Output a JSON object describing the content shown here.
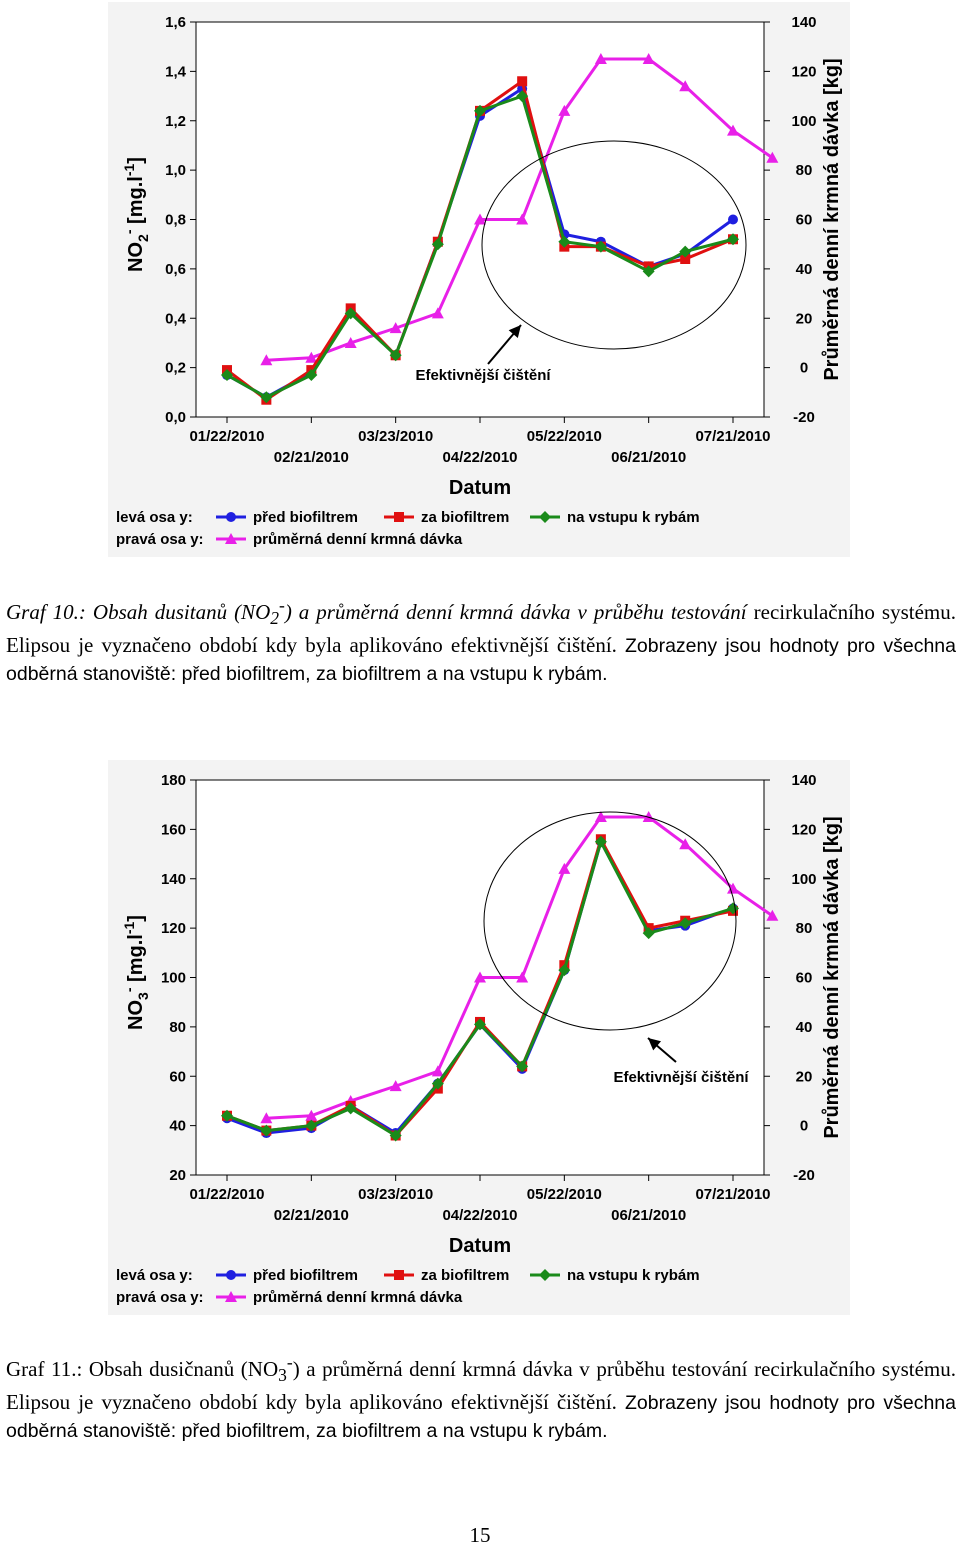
{
  "chart_data": [
    {
      "type": "line",
      "title": "",
      "xlabel": "Datum",
      "ylabel": "NO2- [mg.l-1]",
      "ylabel_parts": [
        "NO",
        "2",
        "-",
        " [mg.l",
        "-1",
        "]"
      ],
      "y2label": "Průměrná denní krmná dávka [kg]",
      "ylim": [
        0,
        1.6
      ],
      "y2lim": [
        -20,
        140
      ],
      "yticks": [
        "0,0",
        "0,2",
        "0,4",
        "0,6",
        "0,8",
        "1,0",
        "1,2",
        "1,4",
        "1,6"
      ],
      "y2ticks": [
        "-20",
        "0",
        "20",
        "40",
        "60",
        "80",
        "100",
        "120",
        "140"
      ],
      "xlim": [
        "2010-01-22",
        "2010-07-21"
      ],
      "xticks_top": [
        "01/22/2010",
        "03/23/2010",
        "05/22/2010",
        "07/21/2010"
      ],
      "xticks_bottom": [
        "02/21/2010",
        "04/22/2010",
        "06/21/2010"
      ],
      "grid": false,
      "legend_left_label": "levá osa y:",
      "legend_right_label": "pravá osa y:",
      "annotation": "Efektivnější čištění",
      "series": [
        {
          "name": "před biofiltrem",
          "axis": "left",
          "color": "#1f1fe0",
          "marker": "circle",
          "x": [
            "2010-01-22",
            "2010-02-05",
            "2010-02-21",
            "2010-03-07",
            "2010-03-23",
            "2010-04-07",
            "2010-04-22",
            "2010-05-07",
            "2010-05-22",
            "2010-06-04",
            "2010-06-21",
            "2010-07-04",
            "2010-07-21"
          ],
          "values": [
            0.17,
            0.08,
            0.18,
            0.43,
            0.25,
            0.71,
            1.22,
            1.33,
            0.74,
            0.71,
            0.61,
            0.66,
            0.8
          ]
        },
        {
          "name": "za biofiltrem",
          "axis": "left",
          "color": "#e01010",
          "marker": "square",
          "x": [
            "2010-01-22",
            "2010-02-05",
            "2010-02-21",
            "2010-03-07",
            "2010-03-23",
            "2010-04-07",
            "2010-04-22",
            "2010-05-07",
            "2010-05-22",
            "2010-06-04",
            "2010-06-21",
            "2010-07-04",
            "2010-07-21"
          ],
          "values": [
            0.19,
            0.07,
            0.19,
            0.44,
            0.25,
            0.71,
            1.24,
            1.36,
            0.69,
            0.69,
            0.61,
            0.64,
            0.72
          ]
        },
        {
          "name": "na vstupu k rybám",
          "axis": "left",
          "color": "#1a8a1a",
          "marker": "diamond",
          "x": [
            "2010-01-22",
            "2010-02-05",
            "2010-02-21",
            "2010-03-07",
            "2010-03-23",
            "2010-04-07",
            "2010-04-22",
            "2010-05-07",
            "2010-05-22",
            "2010-06-04",
            "2010-06-21",
            "2010-07-04",
            "2010-07-21"
          ],
          "values": [
            0.17,
            0.08,
            0.17,
            0.42,
            0.25,
            0.7,
            1.24,
            1.3,
            0.71,
            0.69,
            0.59,
            0.67,
            0.72
          ]
        },
        {
          "name": "průměrná denní krmná dávka",
          "axis": "right",
          "color": "#e820e8",
          "marker": "triangle",
          "x": [
            "2010-02-05",
            "2010-02-21",
            "2010-03-07",
            "2010-03-23",
            "2010-04-07",
            "2010-04-22",
            "2010-05-07",
            "2010-05-22",
            "2010-06-04",
            "2010-06-21",
            "2010-07-04",
            "2010-07-21",
            "2010-08-04"
          ],
          "values": [
            3,
            4,
            10,
            16,
            22,
            60,
            60,
            104,
            125,
            125,
            114,
            96,
            85
          ]
        }
      ]
    },
    {
      "type": "line",
      "title": "",
      "xlabel": "Datum",
      "ylabel": "NO3- [mg.l-1]",
      "ylabel_parts": [
        "NO",
        "3",
        "-",
        " [mg.l",
        "-1",
        "]"
      ],
      "y2label": "Průměrná denní krmná dávka [kg]",
      "ylim": [
        20,
        180
      ],
      "y2lim": [
        -20,
        140
      ],
      "yticks": [
        "20",
        "40",
        "60",
        "80",
        "100",
        "120",
        "140",
        "160",
        "180"
      ],
      "y2ticks": [
        "-20",
        "0",
        "20",
        "40",
        "60",
        "80",
        "100",
        "120",
        "140"
      ],
      "xlim": [
        "2010-01-22",
        "2010-07-21"
      ],
      "xticks_top": [
        "01/22/2010",
        "03/23/2010",
        "05/22/2010",
        "07/21/2010"
      ],
      "xticks_bottom": [
        "02/21/2010",
        "04/22/2010",
        "06/21/2010"
      ],
      "grid": false,
      "legend_left_label": "levá osa y:",
      "legend_right_label": "pravá osa y:",
      "annotation": "Efektivnější čištění",
      "series": [
        {
          "name": "před biofiltrem",
          "axis": "left",
          "color": "#1f1fe0",
          "marker": "circle",
          "x": [
            "2010-01-22",
            "2010-02-05",
            "2010-02-21",
            "2010-03-07",
            "2010-03-23",
            "2010-04-07",
            "2010-04-22",
            "2010-05-07",
            "2010-05-22",
            "2010-06-04",
            "2010-06-21",
            "2010-07-04",
            "2010-07-21"
          ],
          "values": [
            43,
            37,
            39,
            48,
            37,
            57,
            81,
            63,
            103,
            155,
            119,
            121,
            128
          ]
        },
        {
          "name": "za biofiltrem",
          "axis": "left",
          "color": "#e01010",
          "marker": "square",
          "x": [
            "2010-01-22",
            "2010-02-05",
            "2010-02-21",
            "2010-03-07",
            "2010-03-23",
            "2010-04-07",
            "2010-04-22",
            "2010-05-07",
            "2010-05-22",
            "2010-06-04",
            "2010-06-21",
            "2010-07-04",
            "2010-07-21"
          ],
          "values": [
            44,
            38,
            40,
            48,
            36,
            55,
            82,
            64,
            105,
            156,
            120,
            123,
            127
          ]
        },
        {
          "name": "na vstupu k rybám",
          "axis": "left",
          "color": "#1a8a1a",
          "marker": "diamond",
          "x": [
            "2010-01-22",
            "2010-02-05",
            "2010-02-21",
            "2010-03-07",
            "2010-03-23",
            "2010-04-07",
            "2010-04-22",
            "2010-05-07",
            "2010-05-22",
            "2010-06-04",
            "2010-06-21",
            "2010-07-04",
            "2010-07-21"
          ],
          "values": [
            44,
            38,
            40,
            47,
            36,
            57,
            81,
            64,
            103,
            155,
            118,
            122,
            128
          ]
        },
        {
          "name": "průměrná denní krmná dávka",
          "axis": "right",
          "color": "#e820e8",
          "marker": "triangle",
          "x": [
            "2010-02-05",
            "2010-02-21",
            "2010-03-07",
            "2010-03-23",
            "2010-04-07",
            "2010-04-22",
            "2010-05-07",
            "2010-05-22",
            "2010-06-04",
            "2010-06-21",
            "2010-07-04",
            "2010-07-21",
            "2010-08-04"
          ],
          "values": [
            3,
            4,
            10,
            16,
            22,
            60,
            60,
            104,
            125,
            125,
            114,
            96,
            85
          ]
        }
      ]
    }
  ],
  "captions": [
    {
      "label": "Graf 10.",
      "line1_a": ": Obsah dusitanů (NO",
      "line1_sub": "2",
      "line1_sup": "-",
      "line1_b": ") a průměrná denní krmná dávka v průběhu testování",
      "line2": "recirkulačního systému. Elipsou je vyznačeno období kdy byla aplikováno efektivnější čištění.",
      "line3": "Zobrazeny jsou hodnoty pro všechna odběrná stanoviště: před biofiltrem, za biofiltrem a na vstupu k rybám."
    },
    {
      "label": "Graf 11.",
      "line1_a": ": Obsah dusičnanů (NO",
      "line1_sub": "3",
      "line1_sup": "-",
      "line1_b": ") a průměrná denní krmná dávka v průběhu testování",
      "line2": "recirkulačního systému. Elipsou je vyznačeno období kdy byla aplikováno efektivnější čištění.",
      "line3": "Zobrazeny jsou hodnoty pro všechna odběrná stanoviště: před biofiltrem, za biofiltrem a na vstupu k rybám."
    }
  ],
  "page_number": "15"
}
